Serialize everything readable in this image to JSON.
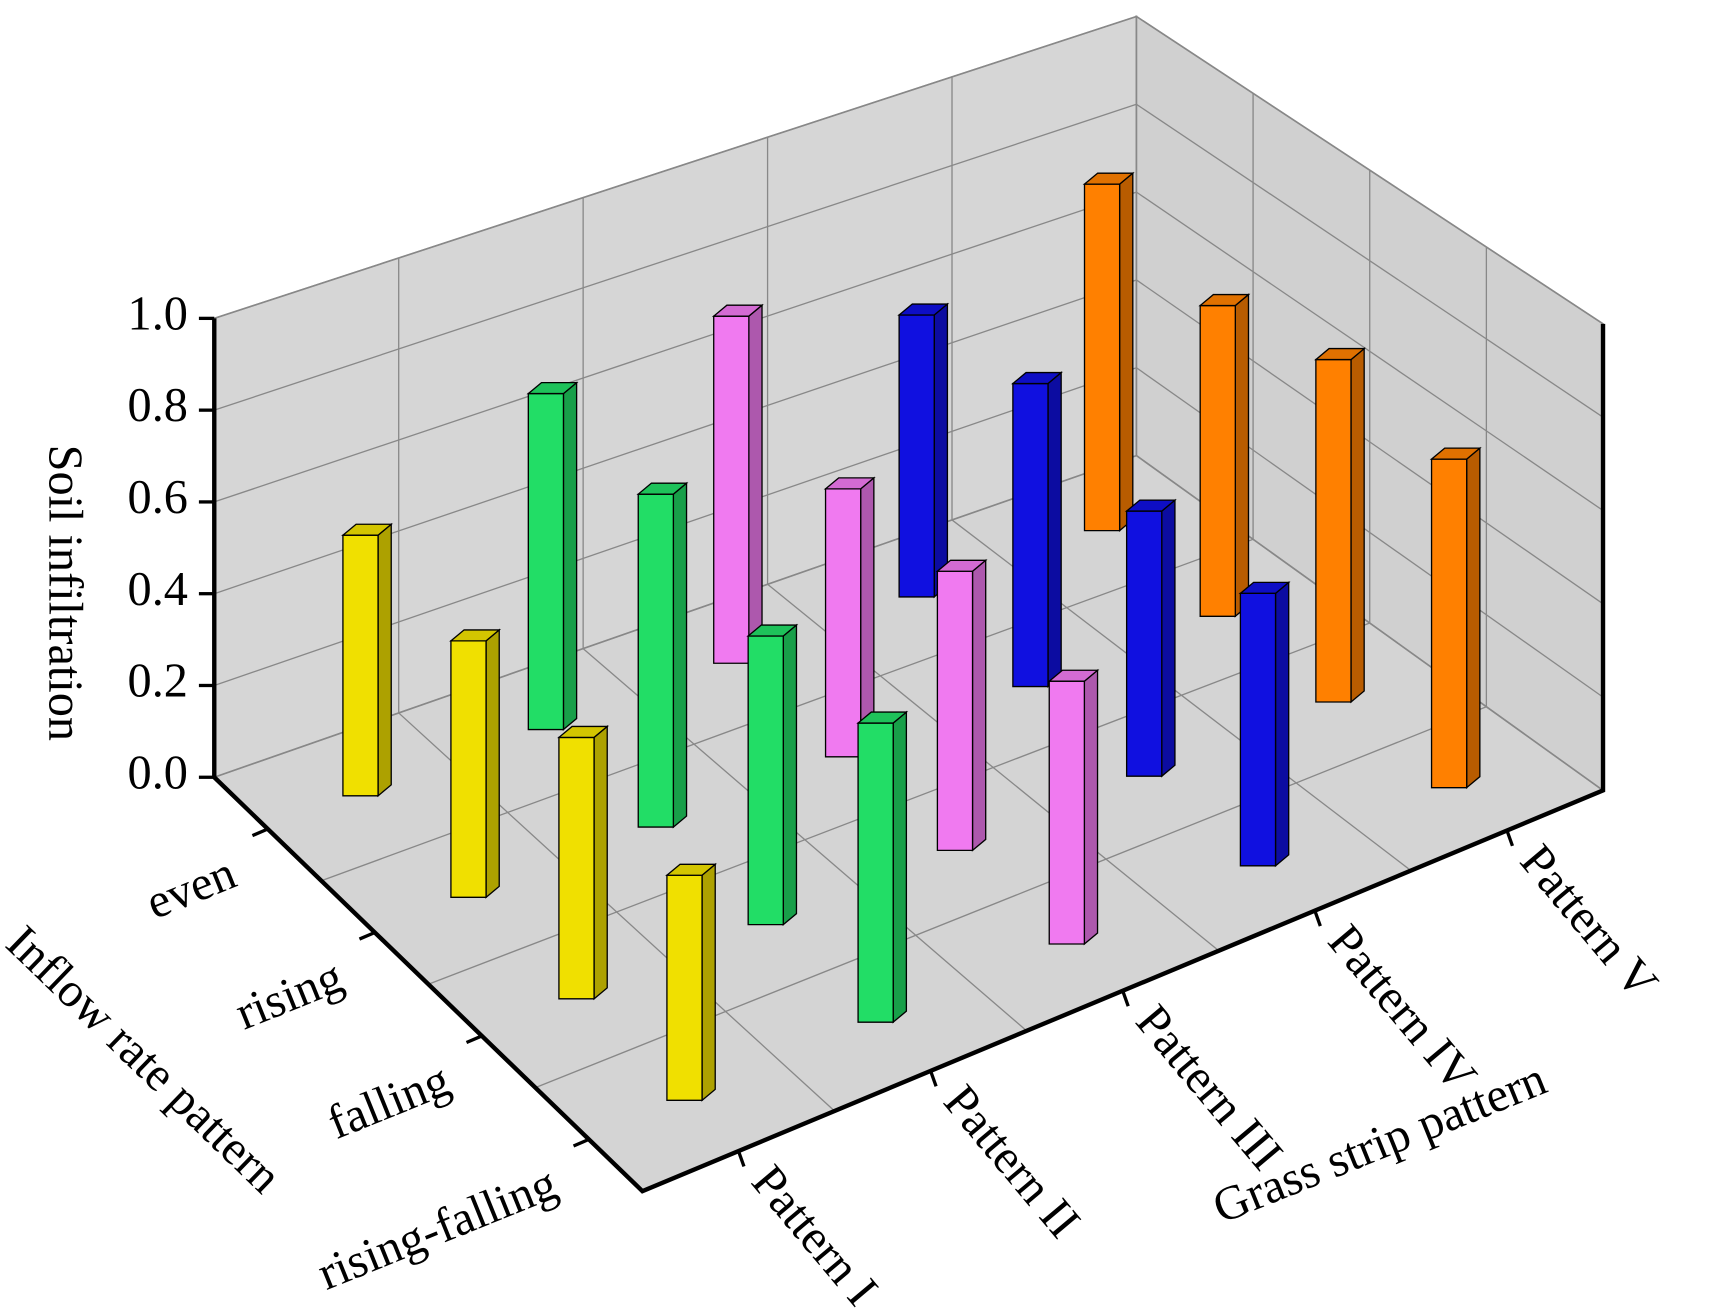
{
  "chart_data": {
    "type": "bar3d",
    "ylabel": "Soil infiltration",
    "xlabel": "Grass strip pattern",
    "zlabel": "Inflow rate pattern",
    "categories": [
      "even",
      "rising",
      "falling",
      "rising-falling"
    ],
    "series": [
      {
        "name": "Pattern I",
        "color": "#f0e000",
        "values": [
          0.57,
          0.56,
          0.57,
          0.49
        ]
      },
      {
        "name": "Pattern II",
        "color": "#22dd66",
        "values": [
          0.74,
          0.73,
          0.63,
          0.65
        ]
      },
      {
        "name": "Pattern III",
        "color": "#f07af0",
        "values": [
          0.77,
          0.59,
          0.61,
          0.57
        ]
      },
      {
        "name": "Pattern IV",
        "color": "#1010e0",
        "values": [
          0.63,
          0.67,
          0.58,
          0.59
        ]
      },
      {
        "name": "Pattern V",
        "color": "#ff8000",
        "values": [
          0.78,
          0.69,
          0.75,
          0.71
        ]
      }
    ],
    "ylim": [
      0,
      1
    ],
    "yticks": [
      {
        "value": 0,
        "label": "0.0"
      },
      0.2,
      0.4,
      0.6,
      0.8,
      {
        "value": 1,
        "label": "1.0"
      }
    ],
    "grid": true
  }
}
